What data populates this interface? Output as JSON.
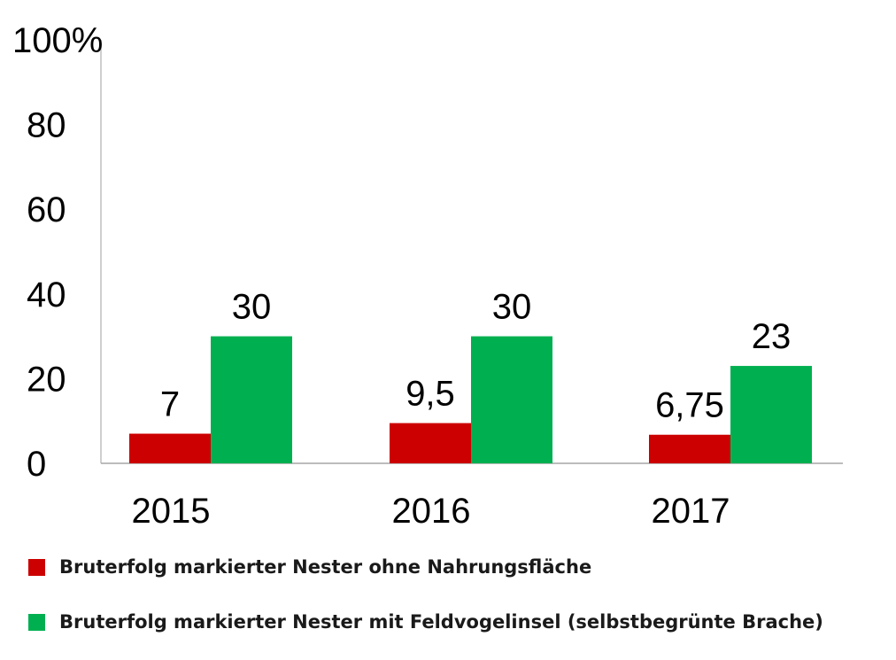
{
  "chart_data": {
    "type": "bar",
    "categories": [
      "2015",
      "2016",
      "2017"
    ],
    "series": [
      {
        "name": "Bruterfolg markierter Nester ohne Nahrungsfläche",
        "color": "#cc0000",
        "values": [
          7,
          9.5,
          6.75
        ],
        "labels": [
          "7",
          "9,5",
          "6,75"
        ]
      },
      {
        "name": "Bruterfolg markierter Nester mit Feldvogelinsel (selbstbegrünte Brache)",
        "color": "#00b050",
        "values": [
          30,
          30,
          23
        ],
        "labels": [
          "30",
          "30",
          "23"
        ]
      }
    ],
    "yticks": [
      "0",
      "20",
      "40",
      "60",
      "80",
      "100%"
    ],
    "ylim": [
      0,
      100
    ],
    "title": "",
    "xlabel": "",
    "ylabel": "",
    "grid": false,
    "legend_position": "bottom"
  }
}
